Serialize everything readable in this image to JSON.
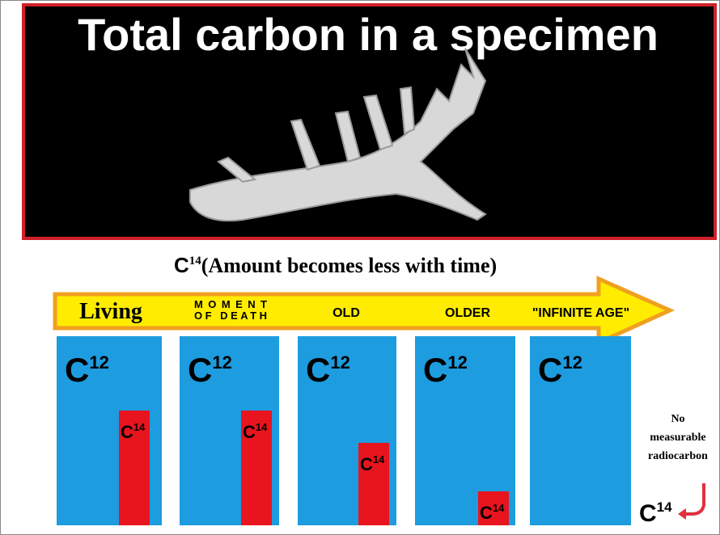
{
  "header": {
    "title": "Total carbon in a specimen"
  },
  "subtitle": {
    "symbol": "C",
    "superscript": "14",
    "text": "(Amount becomes less with time)"
  },
  "stages": [
    {
      "label": [
        "Living"
      ],
      "total": {
        "symbol": "C",
        "superscript": "12"
      },
      "remaining": {
        "symbol": "C",
        "superscript": "14"
      }
    },
    {
      "label": [
        "MOMENT",
        "OF DEATH"
      ],
      "total": {
        "symbol": "C",
        "superscript": "12"
      },
      "remaining": {
        "symbol": "C",
        "superscript": "14"
      }
    },
    {
      "label": [
        "OLD"
      ],
      "total": {
        "symbol": "C",
        "superscript": "12"
      },
      "remaining": {
        "symbol": "C",
        "superscript": "14"
      }
    },
    {
      "label": [
        "OLDER"
      ],
      "total": {
        "symbol": "C",
        "superscript": "12"
      },
      "remaining": {
        "symbol": "C",
        "superscript": "14"
      }
    },
    {
      "label": [
        "\"INFINITE AGE\""
      ],
      "total": {
        "symbol": "C",
        "superscript": "12"
      }
    }
  ],
  "note": {
    "lines": [
      "No",
      "measurable",
      "radiocarbon"
    ],
    "symbol": "C",
    "superscript": "14"
  }
}
